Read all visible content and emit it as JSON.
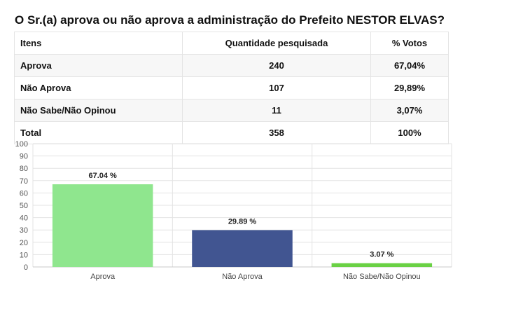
{
  "title": "O Sr.(a) aprova ou não aprova a administração do Prefeito NESTOR ELVAS?",
  "table": {
    "headers": [
      "Itens",
      "Quantidade pesquisada",
      "% Votos"
    ],
    "rows": [
      {
        "item": "Aprova",
        "qty": "240",
        "pct": "67,04%"
      },
      {
        "item": "Não Aprova",
        "qty": "107",
        "pct": "29,89%"
      },
      {
        "item": "Não Sabe/Não Opinou",
        "qty": "11",
        "pct": "3,07%"
      },
      {
        "item": "Total",
        "qty": "358",
        "pct": "100%"
      }
    ]
  },
  "chart_data": {
    "type": "bar",
    "categories": [
      "Aprova",
      "Não Aprova",
      "Não Sabe/Não Opinou"
    ],
    "values": [
      67.04,
      29.89,
      3.07
    ],
    "data_labels": [
      "67.04 %",
      "29.89 %",
      "3.07 %"
    ],
    "colors": [
      "#8fe68e",
      "#415591",
      "#6ad144"
    ],
    "ylim": [
      0,
      100
    ],
    "yticks": [
      0,
      10,
      20,
      30,
      40,
      50,
      60,
      70,
      80,
      90,
      100
    ],
    "grid": true,
    "legend": "none"
  }
}
